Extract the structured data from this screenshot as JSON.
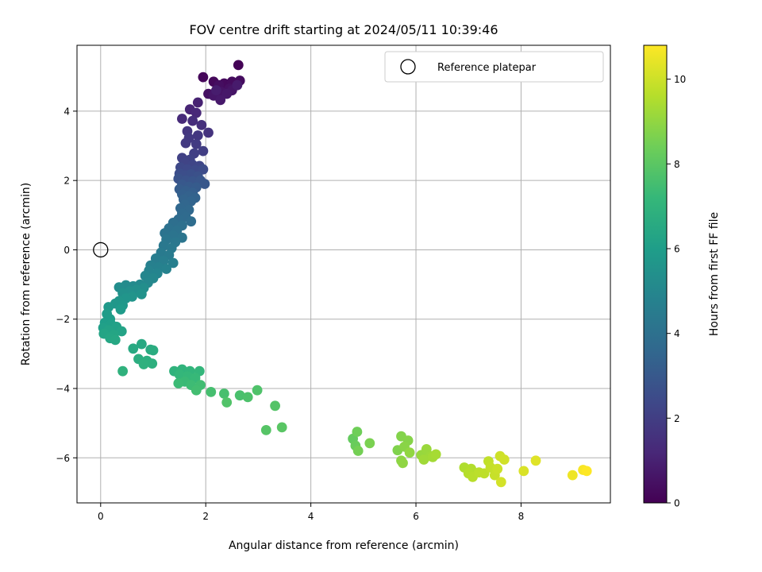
{
  "chart_data": {
    "type": "scatter",
    "title": "FOV centre drift starting at 2024/05/11 10:39:46",
    "xlabel": "Angular distance from reference (arcmin)",
    "ylabel": "Rotation from reference (arcmin)",
    "xlim": [
      -0.45,
      9.7
    ],
    "ylim": [
      -7.3,
      5.9
    ],
    "xticks": [
      0,
      2,
      4,
      6,
      8
    ],
    "yticks": [
      -6,
      -4,
      -2,
      0,
      2,
      4
    ],
    "grid": true,
    "legend": {
      "position": "top-right",
      "entries": [
        {
          "label": "Reference platepar",
          "marker": "open-circle",
          "x": 0,
          "y": 0
        }
      ]
    },
    "colorbar": {
      "label": "Hours from first FF file",
      "colormap": "viridis",
      "range": [
        0,
        10.8
      ],
      "ticks": [
        0,
        2,
        4,
        6,
        8,
        10
      ]
    },
    "colormap_stops": [
      "#440154",
      "#482878",
      "#3e4989",
      "#31688e",
      "#26828e",
      "#1f9e89",
      "#35b779",
      "#6ece58",
      "#b5de2b",
      "#fde725"
    ],
    "points": [
      [
        2.62,
        5.33,
        0.05
      ],
      [
        1.95,
        4.98,
        0.15
      ],
      [
        2.15,
        4.85,
        0.2
      ],
      [
        2.35,
        4.8,
        0.25
      ],
      [
        2.5,
        4.85,
        0.3
      ],
      [
        2.65,
        4.88,
        0.35
      ],
      [
        2.25,
        4.75,
        0.4
      ],
      [
        2.45,
        4.65,
        0.45
      ],
      [
        2.05,
        4.5,
        0.5
      ],
      [
        2.3,
        4.55,
        0.55
      ],
      [
        2.5,
        4.6,
        0.6
      ],
      [
        2.15,
        4.45,
        0.65
      ],
      [
        2.4,
        4.5,
        0.7
      ],
      [
        2.28,
        4.32,
        0.75
      ],
      [
        2.6,
        4.75,
        0.8
      ],
      [
        2.2,
        4.6,
        0.85
      ],
      [
        1.85,
        4.25,
        1.0
      ],
      [
        1.7,
        4.05,
        1.1
      ],
      [
        1.82,
        3.95,
        1.2
      ],
      [
        1.55,
        3.78,
        1.3
      ],
      [
        1.75,
        3.72,
        1.4
      ],
      [
        1.92,
        3.6,
        1.5
      ],
      [
        2.05,
        3.38,
        1.6
      ],
      [
        1.65,
        3.42,
        1.7
      ],
      [
        1.85,
        3.3,
        1.75
      ],
      [
        1.68,
        3.22,
        1.8
      ],
      [
        1.62,
        3.08,
        1.85
      ],
      [
        1.82,
        3.05,
        1.9
      ],
      [
        1.95,
        2.85,
        2.0
      ],
      [
        1.78,
        2.78,
        2.05
      ],
      [
        1.55,
        2.65,
        2.1
      ],
      [
        1.7,
        2.6,
        2.15
      ],
      [
        1.6,
        2.5,
        2.2
      ],
      [
        1.75,
        2.45,
        2.25
      ],
      [
        1.88,
        2.42,
        2.3
      ],
      [
        1.52,
        2.38,
        2.35
      ],
      [
        1.65,
        2.32,
        2.4
      ],
      [
        1.8,
        2.3,
        2.45
      ],
      [
        1.95,
        2.32,
        2.5
      ],
      [
        1.5,
        2.2,
        2.55
      ],
      [
        1.6,
        2.15,
        2.6
      ],
      [
        1.72,
        2.18,
        2.65
      ],
      [
        1.85,
        2.12,
        2.7
      ],
      [
        1.48,
        2.05,
        2.75
      ],
      [
        1.62,
        2.0,
        2.8
      ],
      [
        1.75,
        1.98,
        2.85
      ],
      [
        1.9,
        2.0,
        2.9
      ],
      [
        1.98,
        1.9,
        2.95
      ],
      [
        1.55,
        1.88,
        3.0
      ],
      [
        1.68,
        1.82,
        3.05
      ],
      [
        1.82,
        1.8,
        3.1
      ],
      [
        1.5,
        1.75,
        3.15
      ],
      [
        1.62,
        1.7,
        3.2
      ],
      [
        1.75,
        1.65,
        3.25
      ],
      [
        1.55,
        1.6,
        3.3
      ],
      [
        1.68,
        1.55,
        3.35
      ],
      [
        1.8,
        1.5,
        3.4
      ],
      [
        1.58,
        1.45,
        3.45
      ],
      [
        1.72,
        1.4,
        3.5
      ],
      [
        1.6,
        1.3,
        3.55
      ],
      [
        1.52,
        1.2,
        3.6
      ],
      [
        1.68,
        1.15,
        3.65
      ],
      [
        1.55,
        1.05,
        3.7
      ],
      [
        1.62,
        0.95,
        3.75
      ],
      [
        1.48,
        0.88,
        3.8
      ],
      [
        1.72,
        0.82,
        3.85
      ],
      [
        1.38,
        0.78,
        3.9
      ],
      [
        1.55,
        0.7,
        3.95
      ],
      [
        1.3,
        0.62,
        4.0
      ],
      [
        1.45,
        0.55,
        4.05
      ],
      [
        1.22,
        0.48,
        4.1
      ],
      [
        1.38,
        0.42,
        4.15
      ],
      [
        1.55,
        0.35,
        4.2
      ],
      [
        1.25,
        0.3,
        4.25
      ],
      [
        1.42,
        0.22,
        4.3
      ],
      [
        1.2,
        0.12,
        4.35
      ],
      [
        1.35,
        0.05,
        4.4
      ],
      [
        1.15,
        -0.08,
        4.45
      ],
      [
        1.3,
        -0.15,
        4.5
      ],
      [
        1.05,
        -0.25,
        4.55
      ],
      [
        1.2,
        -0.32,
        4.6
      ],
      [
        1.38,
        -0.38,
        4.65
      ],
      [
        0.95,
        -0.45,
        4.7
      ],
      [
        1.1,
        -0.5,
        4.75
      ],
      [
        1.25,
        -0.55,
        4.8
      ],
      [
        0.92,
        -0.6,
        4.85
      ],
      [
        1.08,
        -0.68,
        4.9
      ],
      [
        0.85,
        -0.75,
        4.95
      ],
      [
        1.0,
        -0.82,
        5.0
      ],
      [
        0.9,
        -0.95,
        5.05
      ],
      [
        0.75,
        -1.0,
        5.1
      ],
      [
        0.62,
        -1.05,
        5.15
      ],
      [
        0.48,
        -1.02,
        5.2
      ],
      [
        0.35,
        -1.08,
        5.25
      ],
      [
        0.82,
        -1.1,
        5.3
      ],
      [
        0.68,
        -1.15,
        5.35
      ],
      [
        0.55,
        -1.2,
        5.4
      ],
      [
        0.42,
        -1.25,
        5.45
      ],
      [
        0.78,
        -1.28,
        5.5
      ],
      [
        0.6,
        -1.35,
        5.55
      ],
      [
        0.48,
        -1.4,
        5.6
      ],
      [
        0.35,
        -1.48,
        5.65
      ],
      [
        0.28,
        -1.55,
        5.7
      ],
      [
        0.42,
        -1.6,
        5.75
      ],
      [
        0.15,
        -1.65,
        5.8
      ],
      [
        0.38,
        -1.72,
        5.85
      ],
      [
        0.12,
        -1.85,
        5.9
      ],
      [
        0.18,
        -2.0,
        5.95
      ],
      [
        0.08,
        -2.1,
        6.0
      ],
      [
        0.2,
        -2.15,
        6.05
      ],
      [
        0.05,
        -2.25,
        6.1
      ],
      [
        0.3,
        -2.22,
        6.15
      ],
      [
        0.15,
        -2.32,
        6.2
      ],
      [
        0.4,
        -2.35,
        6.25
      ],
      [
        0.06,
        -2.42,
        6.3
      ],
      [
        0.25,
        -2.45,
        6.35
      ],
      [
        0.18,
        -2.55,
        6.4
      ],
      [
        0.28,
        -2.6,
        6.45
      ],
      [
        0.78,
        -2.72,
        6.5
      ],
      [
        0.62,
        -2.85,
        6.55
      ],
      [
        0.95,
        -2.88,
        6.6
      ],
      [
        1.0,
        -2.9,
        6.65
      ],
      [
        0.72,
        -3.15,
        6.7
      ],
      [
        0.88,
        -3.2,
        6.75
      ],
      [
        0.98,
        -3.28,
        6.8
      ],
      [
        0.82,
        -3.3,
        6.85
      ],
      [
        0.42,
        -3.5,
        6.9
      ],
      [
        1.4,
        -3.5,
        6.95
      ],
      [
        1.55,
        -3.45,
        7.0
      ],
      [
        1.7,
        -3.5,
        7.05
      ],
      [
        1.88,
        -3.5,
        7.1
      ],
      [
        1.5,
        -3.6,
        7.15
      ],
      [
        1.65,
        -3.65,
        7.2
      ],
      [
        1.8,
        -3.7,
        7.25
      ],
      [
        1.6,
        -3.8,
        7.3
      ],
      [
        1.48,
        -3.85,
        7.35
      ],
      [
        1.72,
        -3.9,
        7.4
      ],
      [
        1.9,
        -3.9,
        7.45
      ],
      [
        1.82,
        -4.05,
        7.5
      ],
      [
        2.1,
        -4.1,
        7.55
      ],
      [
        2.35,
        -4.15,
        7.6
      ],
      [
        2.65,
        -4.2,
        7.65
      ],
      [
        2.8,
        -4.25,
        7.7
      ],
      [
        2.98,
        -4.05,
        7.75
      ],
      [
        2.4,
        -4.4,
        7.8
      ],
      [
        3.32,
        -4.5,
        7.85
      ],
      [
        3.15,
        -5.2,
        7.9
      ],
      [
        3.45,
        -5.12,
        7.95
      ],
      [
        4.8,
        -5.45,
        8.2
      ],
      [
        4.85,
        -5.65,
        8.3
      ],
      [
        4.88,
        -5.25,
        8.4
      ],
      [
        4.9,
        -5.8,
        8.5
      ],
      [
        5.12,
        -5.58,
        8.6
      ],
      [
        5.65,
        -5.78,
        8.7
      ],
      [
        5.72,
        -5.38,
        8.75
      ],
      [
        5.85,
        -5.5,
        8.8
      ],
      [
        5.78,
        -5.68,
        8.85
      ],
      [
        5.72,
        -6.08,
        8.9
      ],
      [
        5.75,
        -6.15,
        8.95
      ],
      [
        5.88,
        -5.85,
        9.0
      ],
      [
        6.1,
        -5.92,
        9.1
      ],
      [
        6.2,
        -5.75,
        9.15
      ],
      [
        6.28,
        -5.95,
        9.2
      ],
      [
        6.15,
        -6.05,
        9.25
      ],
      [
        6.32,
        -5.98,
        9.3
      ],
      [
        6.38,
        -5.9,
        9.35
      ],
      [
        6.92,
        -6.28,
        9.5
      ],
      [
        7.05,
        -6.32,
        9.55
      ],
      [
        7.0,
        -6.45,
        9.6
      ],
      [
        7.08,
        -6.55,
        9.65
      ],
      [
        7.2,
        -6.42,
        9.7
      ],
      [
        7.3,
        -6.45,
        9.75
      ],
      [
        7.38,
        -6.1,
        9.8
      ],
      [
        7.42,
        -6.28,
        9.85
      ],
      [
        7.5,
        -6.5,
        9.9
      ],
      [
        7.55,
        -6.32,
        9.95
      ],
      [
        7.6,
        -5.95,
        10.0
      ],
      [
        7.68,
        -6.05,
        10.05
      ],
      [
        7.62,
        -6.7,
        10.1
      ],
      [
        8.05,
        -6.38,
        10.2
      ],
      [
        8.28,
        -6.08,
        10.3
      ],
      [
        8.98,
        -6.5,
        10.55
      ],
      [
        9.18,
        -6.35,
        10.7
      ],
      [
        9.25,
        -6.38,
        10.8
      ]
    ]
  }
}
